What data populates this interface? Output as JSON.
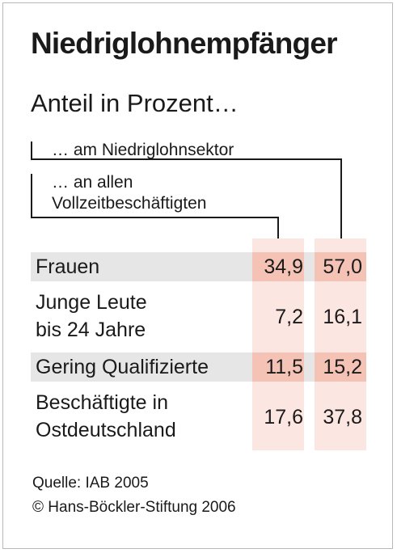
{
  "title": "Niedriglohnempfänger",
  "subtitle": "Anteil in Prozent…",
  "column_headers": {
    "sector": "… am Niedriglohnsektor",
    "all_line1": "… an allen",
    "all_line2": "Vollzeitbeschäftigten"
  },
  "rows": [
    {
      "label_lines": [
        "Frauen"
      ],
      "all_fulltime": "34,9",
      "low_wage_sector": "57,0",
      "highlight": true
    },
    {
      "label_lines": [
        "Junge Leute",
        "bis 24 Jahre"
      ],
      "all_fulltime": "7,2",
      "low_wage_sector": "16,1",
      "highlight": false
    },
    {
      "label_lines": [
        "Gering Qualifizierte"
      ],
      "all_fulltime": "11,5",
      "low_wage_sector": "15,2",
      "highlight": true
    },
    {
      "label_lines": [
        "Beschäftigte in",
        "Ostdeutschland"
      ],
      "all_fulltime": "17,6",
      "low_wage_sector": "37,8",
      "highlight": false
    }
  ],
  "footer": {
    "source": "Quelle: IAB 2005",
    "copyright": "© Hans-Böckler-Stiftung 2006"
  },
  "colors": {
    "column_fill": "#fbe6e1",
    "highlight_cell": "#f4c3b6",
    "highlight_row": "#e6e6e6",
    "text": "#1a1a1a"
  },
  "chart_data": {
    "type": "table",
    "title": "Niedriglohnempfänger",
    "subtitle": "Anteil in Prozent…",
    "columns": [
      "… an allen Vollzeitbeschäftigten",
      "… am Niedriglohnsektor"
    ],
    "categories": [
      "Frauen",
      "Junge Leute bis 24 Jahre",
      "Gering Qualifizierte",
      "Beschäftigte in Ostdeutschland"
    ],
    "series": [
      {
        "name": "… an allen Vollzeitbeschäftigten",
        "values": [
          34.9,
          7.2,
          11.5,
          17.6
        ]
      },
      {
        "name": "… am Niedriglohnsektor",
        "values": [
          57.0,
          16.1,
          15.2,
          37.8
        ]
      }
    ]
  }
}
